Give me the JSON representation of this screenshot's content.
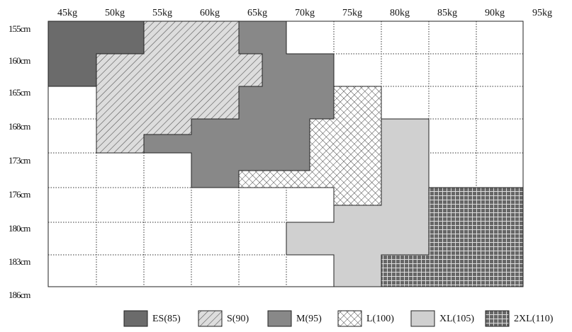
{
  "columns": [
    "45kg",
    "50kg",
    "55kg",
    "60kg",
    "65kg",
    "70kg",
    "75kg",
    "80kg",
    "85kg",
    "90kg",
    "95kg"
  ],
  "rows": [
    "155cm",
    "160cm",
    "165cm",
    "168cm",
    "173cm",
    "176cm",
    "180cm",
    "183cm",
    "186cm"
  ],
  "legend": [
    "ES(85)",
    "S(90)",
    "M(95)",
    "L(100)",
    "XL(105)",
    "2XL(110)"
  ]
}
